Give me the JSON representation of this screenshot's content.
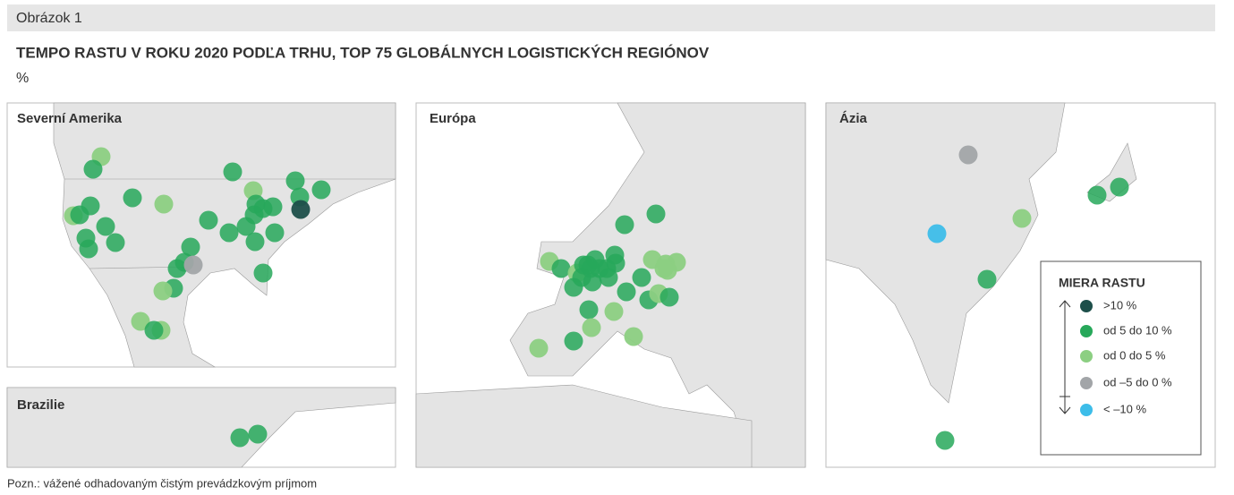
{
  "header": {
    "label": "Obrázok 1",
    "title": "TEMPO RASTU V ROKU 2020 PODĽA TRHU, TOP 75 GLOBÁLNYCH LOGISTICKÝCH REGIÓNOV",
    "unit": "%"
  },
  "panels": [
    "Severní Amerika",
    "Brazilie",
    "Európa",
    "Ázia"
  ],
  "legend": {
    "title": "MIERA RASTU",
    "items": [
      {
        "label": ">10 %",
        "color": "#1d4f4a"
      },
      {
        "label": "od 5 do 10 %",
        "color": "#27a85a"
      },
      {
        "label": "od 0 do 5 %",
        "color": "#8ccf82"
      },
      {
        "label": "od –5 do 0 %",
        "color": "#a2a5a8"
      },
      {
        "label": "< –10 %",
        "color": "#3dbde9"
      }
    ]
  },
  "note": "Pozn.: vážené odhadovaným čistým prevádzkovým príjmom"
}
